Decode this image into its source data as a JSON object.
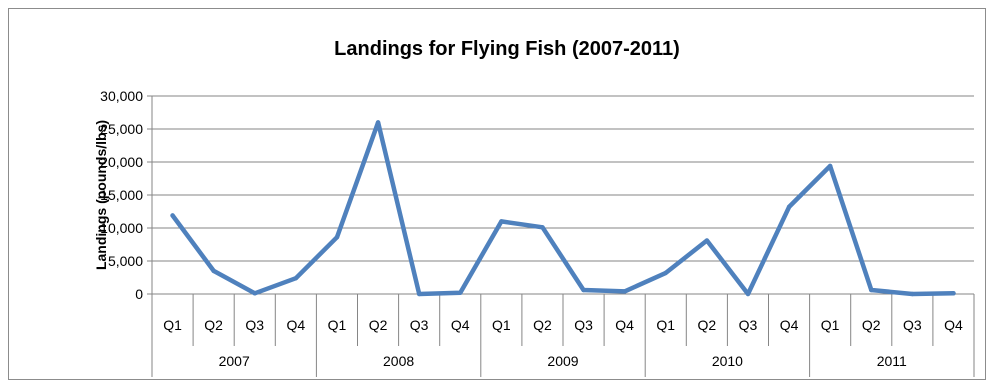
{
  "chart_data": {
    "type": "line",
    "title": "Landings for Flying Fish (2007-2011)",
    "xlabel": "",
    "ylabel": "Landings (pounds/lbs)",
    "ylim": [
      0,
      30000
    ],
    "yticks": [
      "0",
      "5,000",
      "10,000",
      "15,000",
      "20,000",
      "25,000",
      "30,000"
    ],
    "grid": "horizontal",
    "legend": "none",
    "line_color": "#4f81bd",
    "groups": [
      {
        "label": "2007",
        "categories": [
          "Q1",
          "Q2",
          "Q3",
          "Q4"
        ]
      },
      {
        "label": "2008",
        "categories": [
          "Q1",
          "Q2",
          "Q3",
          "Q4"
        ]
      },
      {
        "label": "2009",
        "categories": [
          "Q1",
          "Q2",
          "Q3",
          "Q4"
        ]
      },
      {
        "label": "2010",
        "categories": [
          "Q1",
          "Q2",
          "Q3",
          "Q4"
        ]
      },
      {
        "label": "2011",
        "categories": [
          "Q1",
          "Q2",
          "Q3",
          "Q4"
        ]
      }
    ],
    "values": [
      11900,
      3500,
      100,
      2400,
      8600,
      26000,
      0,
      200,
      11000,
      10100,
      600,
      400,
      3200,
      8100,
      0,
      13200,
      19400,
      600,
      0,
      100
    ]
  }
}
